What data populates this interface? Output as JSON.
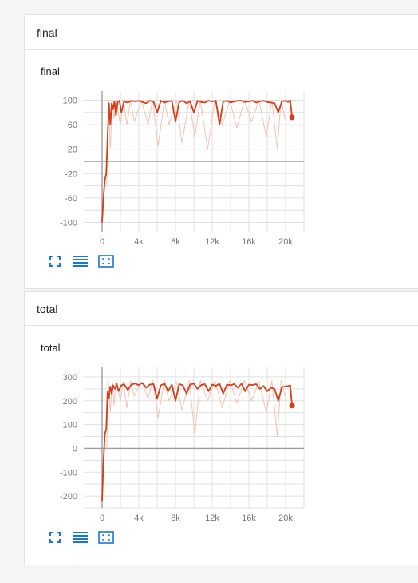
{
  "groups": [
    {
      "header": "final",
      "card_title": "final",
      "chart_data": {
        "type": "line",
        "title": "final",
        "xlabel": "",
        "ylabel": "",
        "xlim": [
          -2000,
          22000
        ],
        "ylim": [
          -115,
          115
        ],
        "x_ticks": [
          0,
          4000,
          8000,
          12000,
          16000,
          20000
        ],
        "x_tick_labels": [
          "0",
          "4k",
          "8k",
          "12k",
          "16k",
          "20k"
        ],
        "y_ticks": [
          100,
          60,
          20,
          -20,
          -60,
          -100
        ],
        "y_tick_labels": [
          "100",
          "60",
          "20",
          "-20",
          "-60",
          "-100"
        ],
        "grid": true,
        "series": [
          {
            "role": "smoothed",
            "color": "#d23f1a",
            "x": [
              0,
              150,
              300,
              450,
              600,
              750,
              900,
              1050,
              1200,
              1350,
              1500,
              1700,
              1900,
              2100,
              2400,
              2800,
              3200,
              3600,
              4000,
              4400,
              4800,
              5200,
              5600,
              6000,
              6400,
              6800,
              7200,
              7600,
              8000,
              8400,
              8800,
              9200,
              9600,
              10000,
              10400,
              10800,
              11200,
              11600,
              12000,
              12400,
              12800,
              13200,
              13600,
              14000,
              14400,
              14800,
              15200,
              15600,
              16000,
              16400,
              16800,
              17200,
              17600,
              18000,
              18400,
              18800,
              19200,
              19600,
              20000,
              20300,
              20500,
              20700
            ],
            "y": [
              -100,
              -60,
              -30,
              -20,
              40,
              95,
              60,
              95,
              85,
              98,
              75,
              97,
              99,
              80,
              98,
              96,
              99,
              98,
              99,
              97,
              95,
              99,
              98,
              80,
              99,
              96,
              98,
              99,
              65,
              97,
              99,
              95,
              98,
              80,
              99,
              97,
              96,
              99,
              98,
              99,
              60,
              98,
              99,
              96,
              98,
              99,
              99,
              97,
              98,
              99,
              96,
              98,
              99,
              97,
              96,
              95,
              80,
              98,
              99,
              97,
              100,
              72
            ]
          },
          {
            "role": "raw",
            "color": "#f4c2b6",
            "x": [
              500,
              700,
              900,
              1100,
              1300,
              1500,
              2000,
              2300,
              2700,
              3100,
              3500,
              4300,
              5000,
              5500,
              6100,
              6800,
              7300,
              8100,
              8700,
              9500,
              10100,
              10700,
              11500,
              12300,
              13100,
              13900,
              14700,
              15500,
              16300,
              17100,
              17900,
              18500,
              19100,
              19500,
              20100
            ],
            "y": [
              -40,
              100,
              20,
              100,
              70,
              100,
              60,
              100,
              60,
              100,
              65,
              100,
              60,
              100,
              25,
              100,
              60,
              100,
              30,
              100,
              40,
              100,
              20,
              100,
              60,
              100,
              55,
              100,
              65,
              100,
              40,
              100,
              20,
              100,
              60
            ]
          }
        ],
        "last_point": {
          "x": 20700,
          "y": 72
        }
      }
    },
    {
      "header": "total",
      "card_title": "total",
      "chart_data": {
        "type": "line",
        "title": "total",
        "xlabel": "",
        "ylabel": "",
        "xlim": [
          -2000,
          22000
        ],
        "ylim": [
          -250,
          340
        ],
        "x_ticks": [
          0,
          4000,
          8000,
          12000,
          16000,
          20000
        ],
        "x_tick_labels": [
          "0",
          "4k",
          "8k",
          "12k",
          "16k",
          "20k"
        ],
        "y_ticks": [
          300,
          200,
          100,
          0,
          -100,
          -200
        ],
        "y_tick_labels": [
          "300",
          "200",
          "100",
          "0",
          "-100",
          "-200"
        ],
        "grid": true,
        "series": [
          {
            "role": "smoothed",
            "color": "#d23f1a",
            "x": [
              0,
              150,
              300,
              450,
              600,
              750,
              900,
              1050,
              1200,
              1400,
              1600,
              1800,
              2100,
              2400,
              2800,
              3200,
              3600,
              4000,
              4400,
              4800,
              5200,
              5600,
              6000,
              6400,
              6800,
              7200,
              7600,
              8000,
              8400,
              8800,
              9200,
              9600,
              10000,
              10400,
              10800,
              11200,
              11600,
              12000,
              12400,
              12800,
              13200,
              13600,
              14000,
              14400,
              14800,
              15200,
              15600,
              16000,
              16400,
              16800,
              17200,
              17600,
              18000,
              18400,
              18800,
              19200,
              19600,
              20000,
              20300,
              20500,
              20700
            ],
            "y": [
              -220,
              -60,
              60,
              80,
              240,
              210,
              260,
              230,
              265,
              250,
              270,
              240,
              265,
              270,
              245,
              268,
              272,
              266,
              275,
              255,
              268,
              270,
              210,
              265,
              272,
              240,
              268,
              200,
              270,
              265,
              230,
              268,
              272,
              250,
              266,
              270,
              240,
              268,
              262,
              272,
              230,
              268,
              265,
              270,
              255,
              272,
              240,
              268,
              266,
              270,
              250,
              262,
              240,
              255,
              250,
              200,
              258,
              260,
              262,
              265,
              180
            ]
          },
          {
            "role": "raw",
            "color": "#f4c2b6",
            "x": [
              500,
              700,
              900,
              1100,
              1300,
              1500,
              2000,
              2300,
              2700,
              3100,
              3500,
              4300,
              5000,
              5500,
              6100,
              6800,
              7300,
              8100,
              8700,
              9500,
              10100,
              10700,
              11500,
              12300,
              13100,
              13900,
              14700,
              15500,
              16300,
              17100,
              17900,
              18500,
              19100,
              19500,
              20100
            ],
            "y": [
              0,
              280,
              150,
              285,
              180,
              285,
              200,
              280,
              170,
              285,
              220,
              280,
              210,
              285,
              130,
              285,
              200,
              280,
              160,
              285,
              60,
              285,
              200,
              285,
              170,
              285,
              190,
              285,
              200,
              280,
              150,
              285,
              50,
              285,
              200
            ]
          }
        ],
        "last_point": {
          "x": 20700,
          "y": 180
        }
      }
    }
  ],
  "toolbar_icons": [
    "fullscreen-icon",
    "list-icon",
    "fit-domain-icon"
  ],
  "colors": {
    "line": "#d23f1a",
    "raw_line": "#f4c2b6",
    "axis": "#9e9e9e",
    "grid": "#e0e0e0",
    "icon_blue": "#1976d2"
  }
}
